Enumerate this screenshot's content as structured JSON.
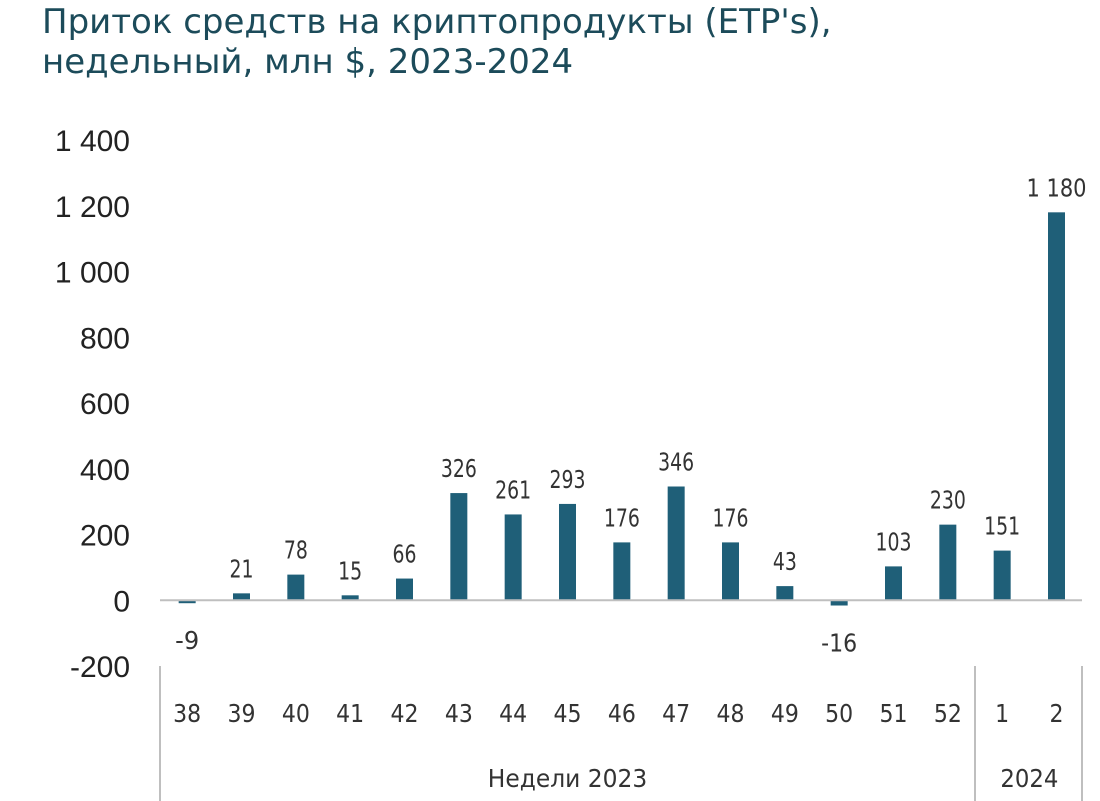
{
  "title": {
    "line1": "Приток средств на криптопродукты (ETP's),",
    "line2": "недельный, млн $, 2023-2024"
  },
  "colors": {
    "bar": "#1f5f78",
    "axis": "#bfbfbf",
    "title": "#1c4b5a"
  },
  "chart_data": {
    "type": "bar",
    "title": "Приток средств на криптопродукты (ETP's), недельный, млн $, 2023-2024",
    "categories": [
      "38",
      "39",
      "40",
      "41",
      "42",
      "43",
      "44",
      "45",
      "46",
      "47",
      "48",
      "49",
      "50",
      "51",
      "52",
      "1",
      "2"
    ],
    "values": [
      -9,
      21,
      78,
      15,
      66,
      326,
      261,
      293,
      176,
      346,
      176,
      43,
      -16,
      103,
      230,
      151,
      1180
    ],
    "data_labels": [
      "-9",
      "21",
      "78",
      "15",
      "66",
      "326",
      "261",
      "293",
      "176",
      "346",
      "176",
      "43",
      "-16",
      "103",
      "230",
      "151",
      "1 180"
    ],
    "y_ticks": [
      "1 400",
      "1 200",
      "1 000",
      "800",
      "600",
      "400",
      "200",
      "0",
      "-200"
    ],
    "y_tick_values": [
      1400,
      1200,
      1000,
      800,
      600,
      400,
      200,
      0,
      -200
    ],
    "ylim": [
      -200,
      1400
    ],
    "groups": [
      {
        "label": "Недели 2023",
        "from": 0,
        "to": 14
      },
      {
        "label": "2024",
        "from": 15,
        "to": 16
      }
    ],
    "grid": false
  }
}
